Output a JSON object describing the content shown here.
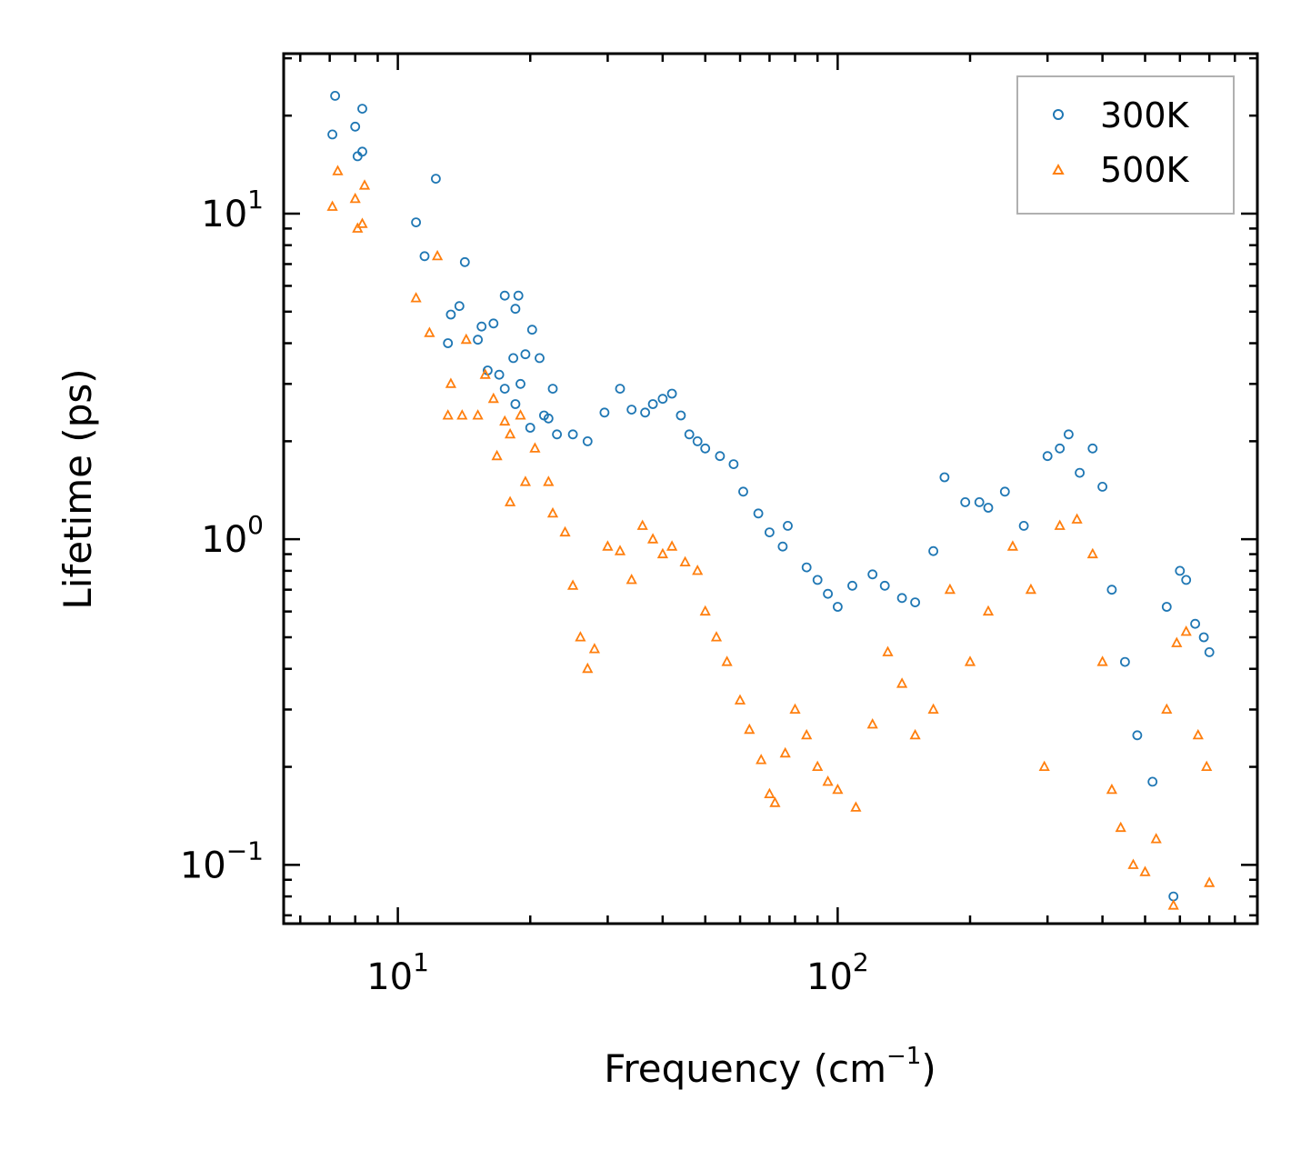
{
  "chart_data": {
    "type": "scatter",
    "title": "",
    "xlabel": {
      "base": "Frequency (cm",
      "sup": "−1",
      "suffix": ")"
    },
    "ylabel": "Lifetime (ps)",
    "xscale": "log",
    "yscale": "log",
    "xlim": [
      5.5,
      900
    ],
    "ylim": [
      0.066,
      31
    ],
    "x_ticks": [
      {
        "value": 10,
        "base": "10",
        "exp": "1"
      },
      {
        "value": 100,
        "base": "10",
        "exp": "2"
      }
    ],
    "y_ticks": [
      {
        "value": 0.1,
        "base": "10",
        "exp": "−1"
      },
      {
        "value": 1,
        "base": "10",
        "exp": "0"
      },
      {
        "value": 10,
        "base": "10",
        "exp": "1"
      }
    ],
    "legend_position": "top-right",
    "series": [
      {
        "name": "300K",
        "marker": "circle",
        "color": "#1f77b4",
        "points": [
          [
            7.2,
            23
          ],
          [
            7.1,
            17.5
          ],
          [
            8.3,
            21
          ],
          [
            8.0,
            18.5
          ],
          [
            8.1,
            15
          ],
          [
            8.3,
            15.5
          ],
          [
            11.0,
            9.4
          ],
          [
            12.2,
            12.8
          ],
          [
            11.5,
            7.4
          ],
          [
            14.2,
            7.1
          ],
          [
            13.8,
            5.2
          ],
          [
            13.2,
            4.9
          ],
          [
            13.0,
            4.0
          ],
          [
            15.2,
            4.1
          ],
          [
            15.5,
            4.5
          ],
          [
            16.5,
            4.6
          ],
          [
            17.5,
            5.6
          ],
          [
            18.5,
            5.1
          ],
          [
            18.8,
            5.6
          ],
          [
            18.3,
            3.6
          ],
          [
            19.5,
            3.7
          ],
          [
            20.2,
            4.4
          ],
          [
            21.0,
            3.6
          ],
          [
            17.0,
            3.2
          ],
          [
            17.5,
            2.9
          ],
          [
            18.5,
            2.6
          ],
          [
            16.0,
            3.3
          ],
          [
            19.0,
            3.0
          ],
          [
            21.5,
            2.4
          ],
          [
            22.5,
            2.9
          ],
          [
            23.0,
            2.1
          ],
          [
            20.0,
            2.2
          ],
          [
            22.0,
            2.35
          ],
          [
            25.0,
            2.1
          ],
          [
            27.0,
            2.0
          ],
          [
            29.5,
            2.45
          ],
          [
            32.0,
            2.9
          ],
          [
            34.0,
            2.5
          ],
          [
            36.5,
            2.45
          ],
          [
            38.0,
            2.6
          ],
          [
            40.0,
            2.7
          ],
          [
            42.0,
            2.8
          ],
          [
            44.0,
            2.4
          ],
          [
            46.0,
            2.1
          ],
          [
            48.0,
            2.0
          ],
          [
            50.0,
            1.9
          ],
          [
            54.0,
            1.8
          ],
          [
            58.0,
            1.7
          ],
          [
            61.0,
            1.4
          ],
          [
            66.0,
            1.2
          ],
          [
            70.0,
            1.05
          ],
          [
            75.0,
            0.95
          ],
          [
            77.0,
            1.1
          ],
          [
            85.0,
            0.82
          ],
          [
            90.0,
            0.75
          ],
          [
            95.0,
            0.68
          ],
          [
            100.0,
            0.62
          ],
          [
            108.0,
            0.72
          ],
          [
            120.0,
            0.78
          ],
          [
            128.0,
            0.72
          ],
          [
            140.0,
            0.66
          ],
          [
            150.0,
            0.64
          ],
          [
            165.0,
            0.92
          ],
          [
            175.0,
            1.55
          ],
          [
            195.0,
            1.3
          ],
          [
            210.0,
            1.3
          ],
          [
            220.0,
            1.25
          ],
          [
            240.0,
            1.4
          ],
          [
            265.0,
            1.1
          ],
          [
            300.0,
            1.8
          ],
          [
            320.0,
            1.9
          ],
          [
            335.0,
            2.1
          ],
          [
            355.0,
            1.6
          ],
          [
            380.0,
            1.9
          ],
          [
            400.0,
            1.45
          ],
          [
            420.0,
            0.7
          ],
          [
            450.0,
            0.42
          ],
          [
            480.0,
            0.25
          ],
          [
            520.0,
            0.18
          ],
          [
            560.0,
            0.62
          ],
          [
            600.0,
            0.8
          ],
          [
            620.0,
            0.75
          ],
          [
            650.0,
            0.55
          ],
          [
            680.0,
            0.5
          ],
          [
            700.0,
            0.45
          ],
          [
            580.0,
            0.08
          ]
        ]
      },
      {
        "name": "500K",
        "marker": "triangle",
        "color": "#ff7f0e",
        "points": [
          [
            7.3,
            13.5
          ],
          [
            7.1,
            10.5
          ],
          [
            8.4,
            12.2
          ],
          [
            8.0,
            11.1
          ],
          [
            8.1,
            9.0
          ],
          [
            8.3,
            9.3
          ],
          [
            11.0,
            5.5
          ],
          [
            12.3,
            7.4
          ],
          [
            11.8,
            4.3
          ],
          [
            14.3,
            4.1
          ],
          [
            13.2,
            3.0
          ],
          [
            13.0,
            2.4
          ],
          [
            14.0,
            2.4
          ],
          [
            15.2,
            2.4
          ],
          [
            15.8,
            3.2
          ],
          [
            16.5,
            2.7
          ],
          [
            17.5,
            2.3
          ],
          [
            18.0,
            2.1
          ],
          [
            16.8,
            1.8
          ],
          [
            19.0,
            2.4
          ],
          [
            19.5,
            1.5
          ],
          [
            18.0,
            1.3
          ],
          [
            20.5,
            1.9
          ],
          [
            22.0,
            1.5
          ],
          [
            22.5,
            1.2
          ],
          [
            24.0,
            1.05
          ],
          [
            25.0,
            0.72
          ],
          [
            26.0,
            0.5
          ],
          [
            27.0,
            0.4
          ],
          [
            28.0,
            0.46
          ],
          [
            30.0,
            0.95
          ],
          [
            32.0,
            0.92
          ],
          [
            34.0,
            0.75
          ],
          [
            36.0,
            1.1
          ],
          [
            38.0,
            1.0
          ],
          [
            40.0,
            0.9
          ],
          [
            42.0,
            0.95
          ],
          [
            45.0,
            0.85
          ],
          [
            48.0,
            0.8
          ],
          [
            50.0,
            0.6
          ],
          [
            53.0,
            0.5
          ],
          [
            56.0,
            0.42
          ],
          [
            60.0,
            0.32
          ],
          [
            63.0,
            0.26
          ],
          [
            67.0,
            0.21
          ],
          [
            70.0,
            0.165
          ],
          [
            72.0,
            0.155
          ],
          [
            76.0,
            0.22
          ],
          [
            80.0,
            0.3
          ],
          [
            85.0,
            0.25
          ],
          [
            90.0,
            0.2
          ],
          [
            95.0,
            0.18
          ],
          [
            100.0,
            0.17
          ],
          [
            110.0,
            0.15
          ],
          [
            120.0,
            0.27
          ],
          [
            130.0,
            0.45
          ],
          [
            140.0,
            0.36
          ],
          [
            150.0,
            0.25
          ],
          [
            165.0,
            0.3
          ],
          [
            180.0,
            0.7
          ],
          [
            200.0,
            0.42
          ],
          [
            220.0,
            0.6
          ],
          [
            250.0,
            0.95
          ],
          [
            275.0,
            0.7
          ],
          [
            295.0,
            0.2
          ],
          [
            320.0,
            1.1
          ],
          [
            350.0,
            1.15
          ],
          [
            380.0,
            0.9
          ],
          [
            400.0,
            0.42
          ],
          [
            420.0,
            0.17
          ],
          [
            440.0,
            0.13
          ],
          [
            470.0,
            0.1
          ],
          [
            500.0,
            0.095
          ],
          [
            530.0,
            0.12
          ],
          [
            560.0,
            0.3
          ],
          [
            590.0,
            0.48
          ],
          [
            620.0,
            0.52
          ],
          [
            660.0,
            0.25
          ],
          [
            690.0,
            0.2
          ],
          [
            580.0,
            0.075
          ],
          [
            700.0,
            0.088
          ]
        ]
      }
    ]
  }
}
